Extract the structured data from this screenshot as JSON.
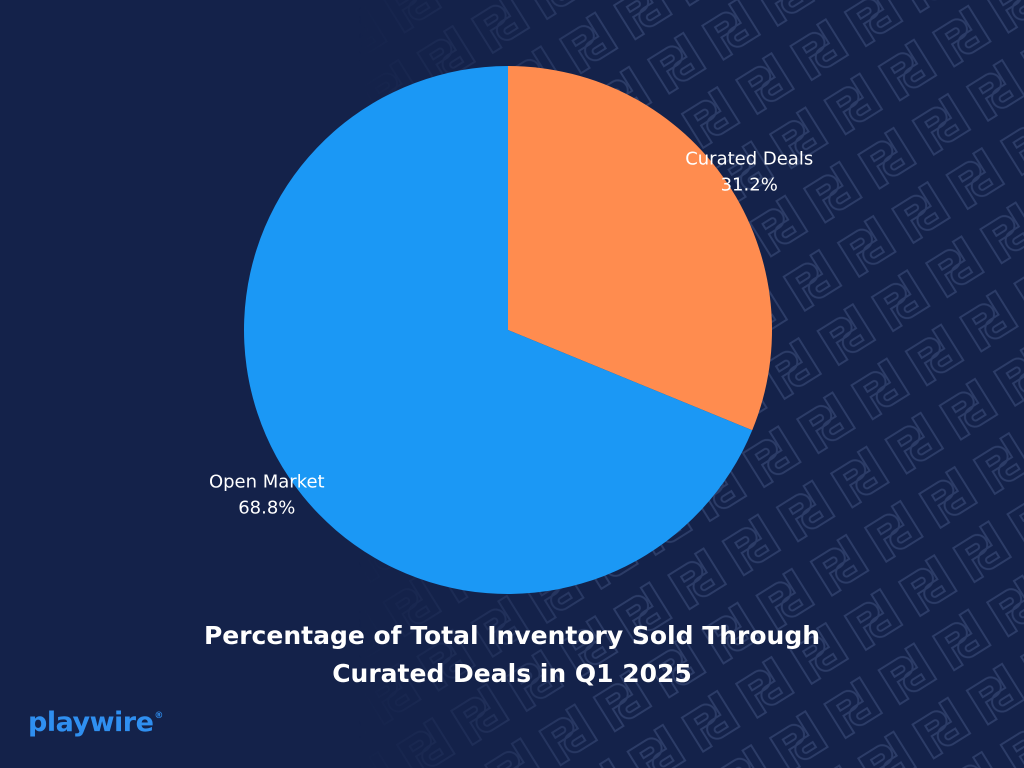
{
  "chart_data": {
    "type": "pie",
    "title": [
      "Percentage of Total Inventory Sold Through",
      "Curated Deals in Q1 2025"
    ],
    "slices": [
      {
        "label": "Curated Deals",
        "value": 31.2,
        "display": "31.2%",
        "color": "#ff8c4f"
      },
      {
        "label": "Open Market",
        "value": 68.8,
        "display": "68.8%",
        "color": "#1b98f5"
      }
    ],
    "start": "12 o'clock",
    "direction": "clockwise"
  },
  "brand": {
    "name": "playwire",
    "mark": "®"
  },
  "colors": {
    "background": "#14224a",
    "pattern": "#2c3c67",
    "brand": "#2f8ff0"
  }
}
